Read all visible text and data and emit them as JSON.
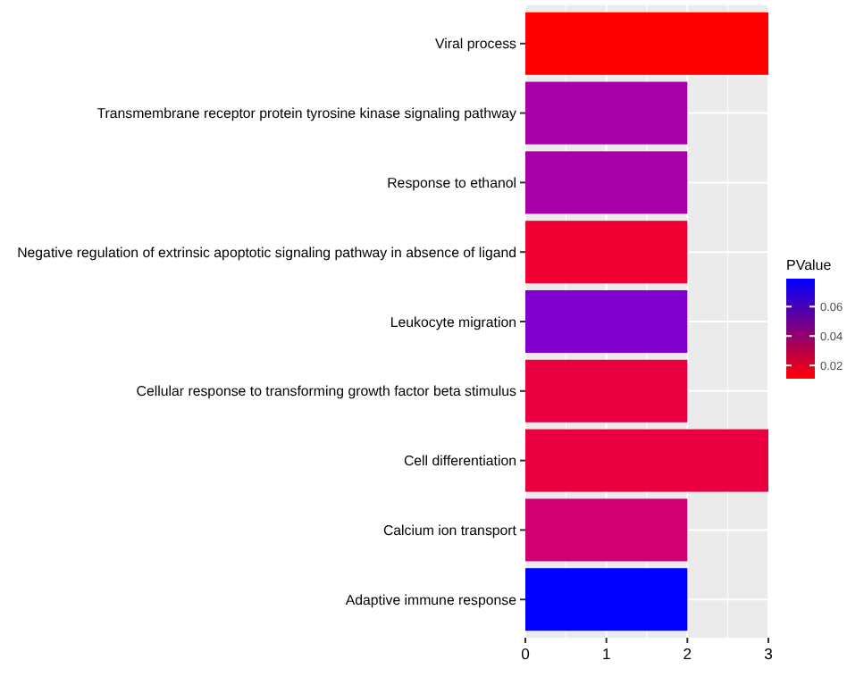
{
  "chart_data": {
    "type": "bar",
    "orientation": "horizontal",
    "categories": [
      "Viral process",
      "Transmembrane receptor protein tyrosine kinase signaling pathway",
      "Response to ethanol",
      "Negative regulation of extrinsic apoptotic signaling pathway in absence of ligand",
      "Leukocyte migration",
      "Cellular response to transforming growth factor beta stimulus",
      "Cell differentiation",
      "Calcium ion transport",
      "Adaptive immune response"
    ],
    "values": [
      3,
      2,
      2,
      2,
      2,
      2,
      3,
      2,
      2
    ],
    "colors": [
      "#ff0000",
      "#a800a8",
      "#a800a8",
      "#f00033",
      "#7f00cf",
      "#ea0040",
      "#ea0040",
      "#d00070",
      "#0000ff"
    ],
    "xlim": [
      0,
      3
    ],
    "xticks": [
      0,
      1,
      2,
      3
    ],
    "grid": true,
    "clabel": "PValue",
    "clim": [
      0.011,
      0.079
    ],
    "cticks": [
      0.02,
      0.04,
      0.06
    ]
  }
}
